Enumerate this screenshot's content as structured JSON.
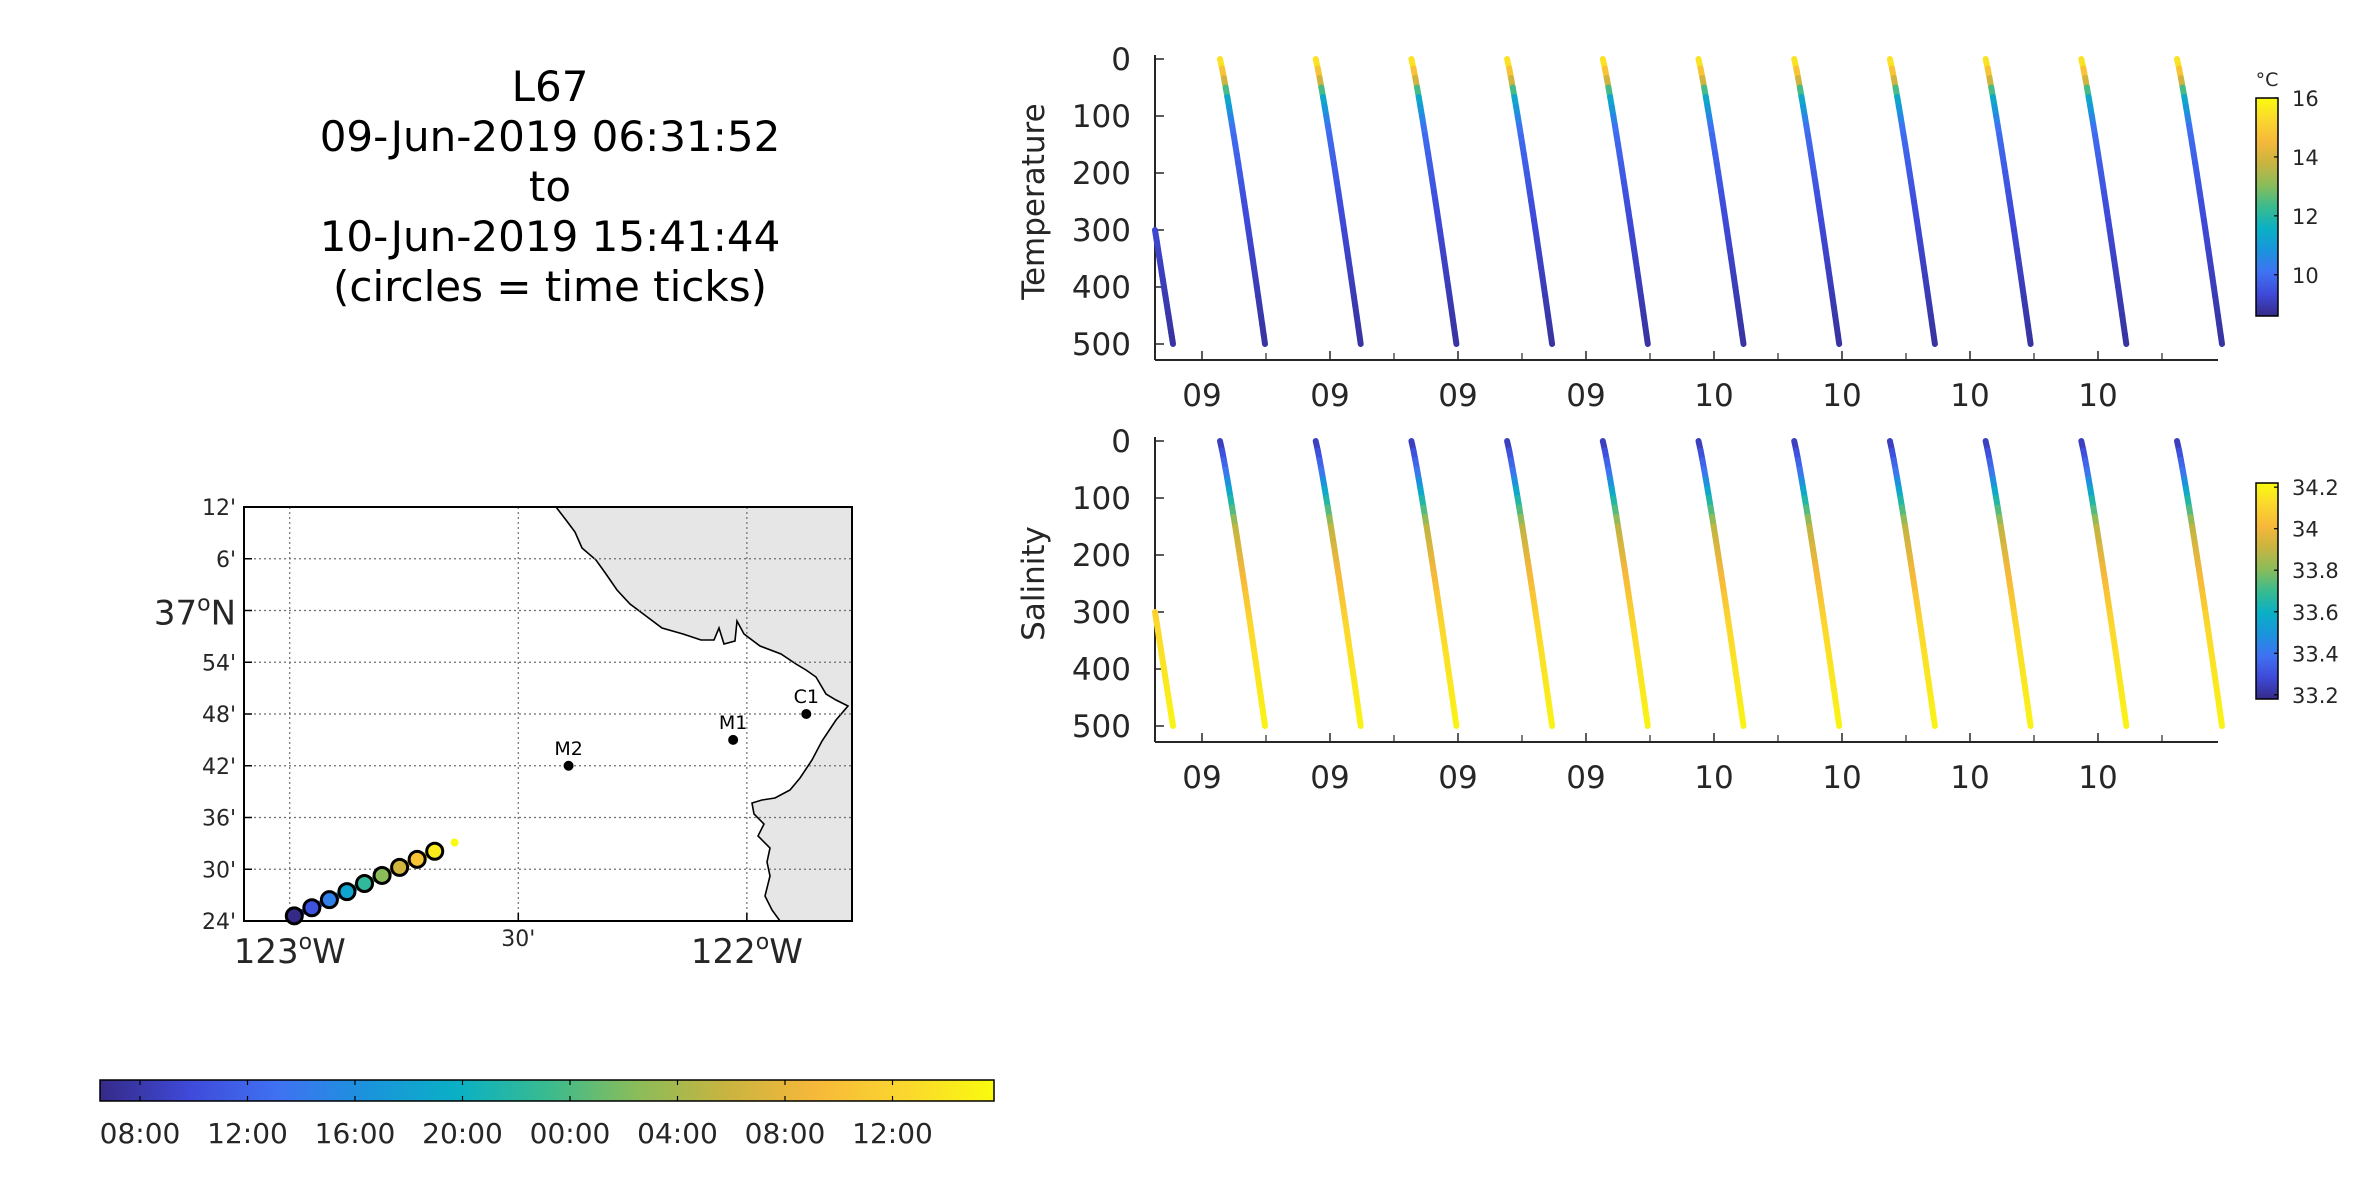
{
  "title_lines": [
    "L67",
    "09-Jun-2019 06:31:52",
    "to",
    "10-Jun-2019 15:41:44",
    "(circles = time ticks)"
  ],
  "colors": {
    "colormap": [
      "#352a87",
      "#3f4ad9",
      "#3f72f2",
      "#1a94dc",
      "#0ab0c5",
      "#39bb8f",
      "#8abc5a",
      "#c8b440",
      "#f6b83a",
      "#fbd72e",
      "#f9fb0e"
    ],
    "land": "#e6e6e6",
    "grid": "#6e6e6e"
  },
  "map": {
    "lat_tick_labels": [
      "12'",
      "6'",
      "37°N",
      "54'",
      "48'",
      "42'",
      "36'",
      "30'",
      "24'"
    ],
    "lat_values": [
      37.2,
      37.1,
      37.0,
      36.9,
      36.8,
      36.7,
      36.6,
      36.5,
      36.4
    ],
    "lon_tick_labels": [
      "123°W",
      "30'",
      "122°W"
    ],
    "lon_values": [
      -123.0,
      -122.5,
      -122.0
    ],
    "lon_range": [
      -123.1,
      -121.77
    ],
    "lat_range": [
      36.4,
      37.2
    ],
    "stations": [
      {
        "name": "M2",
        "lon": -122.39,
        "lat": 36.7
      },
      {
        "name": "M1",
        "lon": -122.03,
        "lat": 36.75
      },
      {
        "name": "C1",
        "lon": -121.87,
        "lat": 36.8
      }
    ],
    "glider_track": {
      "start": {
        "lon": -122.99,
        "lat": 36.41
      },
      "end": {
        "lon": -122.67,
        "lat": 36.54
      }
    },
    "time_tick_circles": 9
  },
  "time_colorbar": {
    "tick_labels": [
      "08:00",
      "12:00",
      "16:00",
      "20:00",
      "00:00",
      "04:00",
      "08:00",
      "12:00"
    ]
  },
  "chart_data": [
    {
      "type": "scatter",
      "ylabel": "Temperature",
      "ylim": [
        0,
        500
      ],
      "y_ticks": [
        0,
        100,
        200,
        300,
        400,
        500
      ],
      "y_reversed": true,
      "x_tick_labels": [
        "09",
        "09",
        "09",
        "09",
        "10",
        "10",
        "10",
        "10"
      ],
      "colorbar": {
        "unit": "°C",
        "range": [
          8.6,
          16.0
        ],
        "ticks": [
          10,
          12,
          14,
          16
        ]
      },
      "profile_color_by_depth": [
        {
          "depth": 0,
          "value": 15.5
        },
        {
          "depth": 30,
          "value": 14.2
        },
        {
          "depth": 60,
          "value": 11.5
        },
        {
          "depth": 120,
          "value": 10.0
        },
        {
          "depth": 250,
          "value": 9.4
        },
        {
          "depth": 500,
          "value": 8.8
        }
      ],
      "profiles": 12
    },
    {
      "type": "scatter",
      "ylabel": "Salinity",
      "ylim": [
        0,
        500
      ],
      "y_ticks": [
        0,
        100,
        200,
        300,
        400,
        500
      ],
      "y_reversed": true,
      "x_tick_labels": [
        "09",
        "09",
        "09",
        "09",
        "10",
        "10",
        "10",
        "10"
      ],
      "colorbar": {
        "unit": "",
        "range": [
          33.18,
          34.22
        ],
        "ticks": [
          "33.2",
          "33.4",
          "33.6",
          "33.8",
          "34",
          "34.2"
        ]
      },
      "profile_color_by_depth": [
        {
          "depth": 0,
          "value": 33.25
        },
        {
          "depth": 50,
          "value": 33.4
        },
        {
          "depth": 100,
          "value": 33.65
        },
        {
          "depth": 150,
          "value": 33.9
        },
        {
          "depth": 220,
          "value": 34.0
        },
        {
          "depth": 320,
          "value": 34.12
        },
        {
          "depth": 500,
          "value": 34.2
        }
      ],
      "profiles": 12
    }
  ]
}
